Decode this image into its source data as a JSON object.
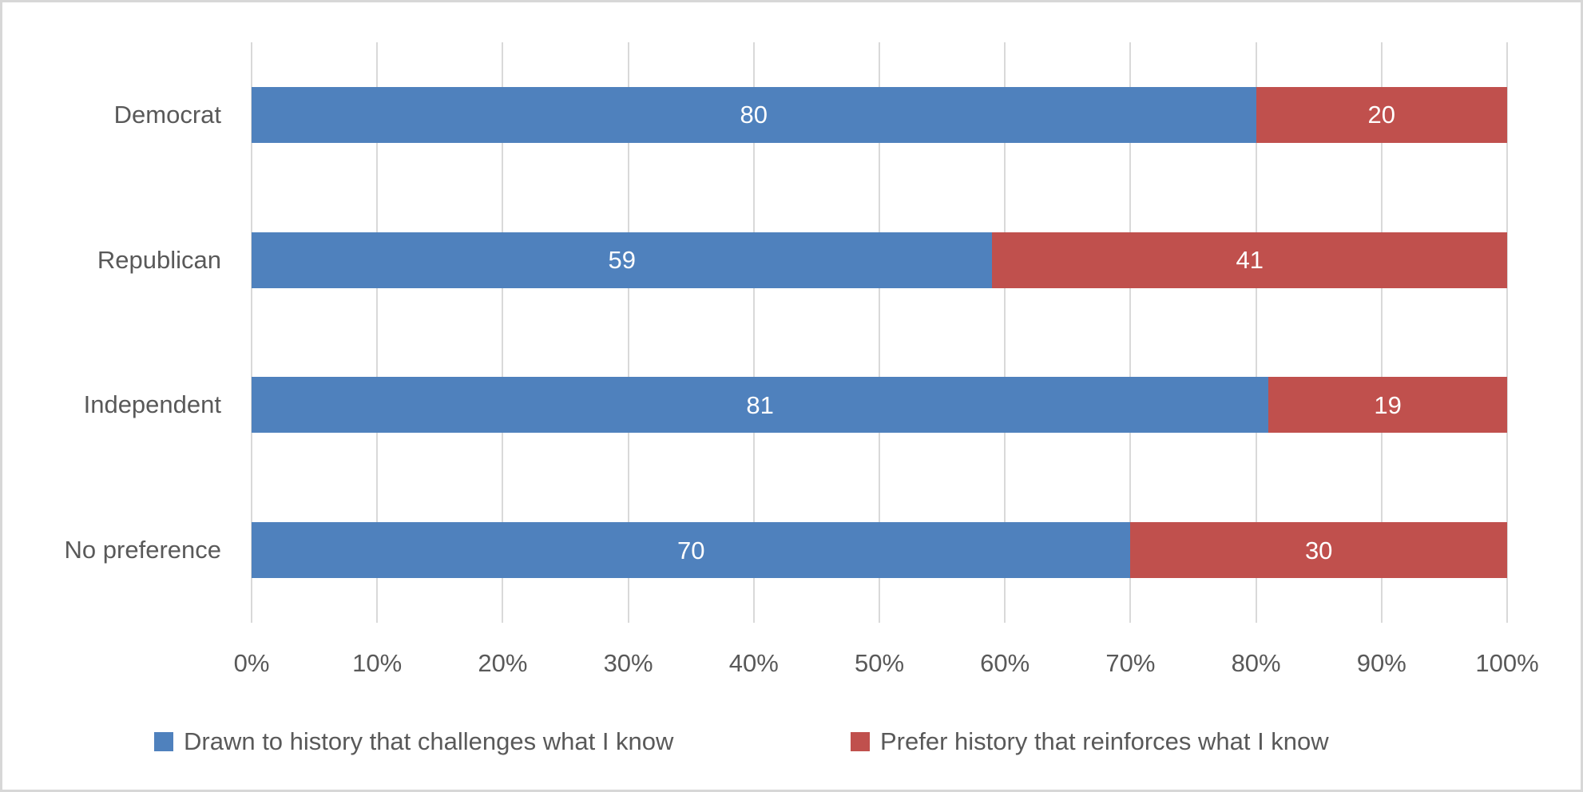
{
  "chart_data": {
    "type": "bar",
    "orientation": "horizontal",
    "stacked": true,
    "title": "",
    "xlabel": "",
    "ylabel": "",
    "categories": [
      "Democrat",
      "Republican",
      "Independent",
      "No preference"
    ],
    "series": [
      {
        "name": "Drawn to history that challenges what I know",
        "color": "#4F81BD",
        "values": [
          80,
          59,
          81,
          70
        ]
      },
      {
        "name": "Prefer history that reinforces what I know",
        "color": "#C0504D",
        "values": [
          20,
          41,
          19,
          30
        ]
      }
    ],
    "x_ticks": [
      "0%",
      "10%",
      "20%",
      "30%",
      "40%",
      "50%",
      "60%",
      "70%",
      "80%",
      "90%",
      "100%"
    ],
    "xlim": [
      0,
      100
    ],
    "grid": "vertical",
    "gridline_color": "#D9D9D9",
    "legend_position": "bottom",
    "data_labels": true,
    "text_color": "#595959",
    "label_text_color": "#FFFFFF"
  }
}
